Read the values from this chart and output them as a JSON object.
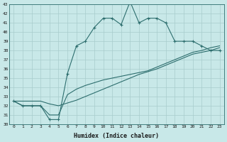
{
  "xlabel": "Humidex (Indice chaleur)",
  "x": [
    0,
    1,
    2,
    3,
    4,
    5,
    6,
    7,
    8,
    9,
    10,
    11,
    12,
    13,
    14,
    15,
    16,
    17,
    18,
    19,
    20,
    21,
    22,
    23
  ],
  "main_line": [
    32.5,
    32,
    32,
    32,
    30.5,
    30.5,
    35.5,
    38.5,
    39,
    40.5,
    41.5,
    41.5,
    40.8,
    43.3,
    41,
    41.5,
    41.5,
    41,
    39,
    39,
    39,
    38.5,
    38,
    38
  ],
  "line2": [
    32.5,
    32,
    32,
    32,
    31,
    31,
    33.2,
    33.8,
    34.2,
    34.5,
    34.8,
    35.0,
    35.2,
    35.4,
    35.6,
    35.8,
    36.2,
    36.6,
    37.0,
    37.4,
    37.8,
    38.0,
    38.3,
    38.5
  ],
  "line3": [
    32.5,
    32.5,
    32.5,
    32.5,
    32.2,
    32.0,
    32.3,
    32.6,
    33.0,
    33.4,
    33.8,
    34.2,
    34.6,
    35.0,
    35.4,
    35.7,
    36.0,
    36.4,
    36.8,
    37.2,
    37.6,
    37.8,
    38.0,
    38.3
  ],
  "color": "#2d6e6e",
  "bg_color": "#c8e8e8",
  "grid_color": "#a8cccc",
  "ylim": [
    30,
    43
  ],
  "xlim": [
    -0.5,
    23.5
  ]
}
